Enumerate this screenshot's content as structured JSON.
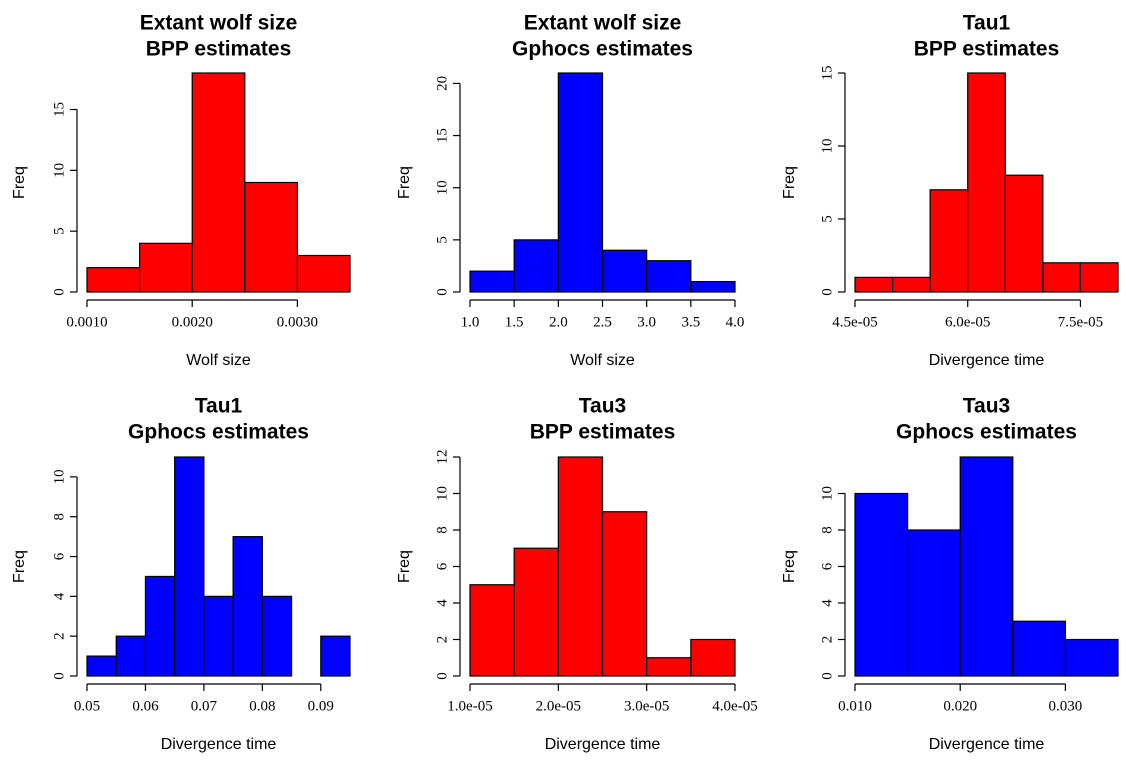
{
  "chart_data": [
    {
      "type": "bar",
      "title": [
        "Extant wolf size",
        "BPP estimates"
      ],
      "xlabel": "Wolf size",
      "ylabel": "Freq",
      "fill": "#ff0000",
      "bins": [
        [
          0.001,
          0.0015
        ],
        [
          0.0015,
          0.002
        ],
        [
          0.002,
          0.0025
        ],
        [
          0.0025,
          0.003
        ],
        [
          0.003,
          0.0035
        ]
      ],
      "values": [
        2,
        4,
        18,
        9,
        3
      ],
      "xlim": [
        0.001,
        0.0035
      ],
      "ylim": [
        0,
        18
      ],
      "xticks": [
        0.001,
        0.002,
        0.003
      ],
      "xtick_labels": [
        "0.0010",
        "0.0020",
        "0.0030"
      ],
      "yticks": [
        0,
        5,
        10,
        15
      ],
      "ytick_labels": [
        "0",
        "5",
        "10",
        "15"
      ]
    },
    {
      "type": "bar",
      "title": [
        "Extant wolf size",
        "Gphocs estimates"
      ],
      "xlabel": "Wolf size",
      "ylabel": "Freq",
      "fill": "#0000ff",
      "bins": [
        [
          1.0,
          1.5
        ],
        [
          1.5,
          2.0
        ],
        [
          2.0,
          2.5
        ],
        [
          2.5,
          3.0
        ],
        [
          3.0,
          3.5
        ],
        [
          3.5,
          4.0
        ]
      ],
      "values": [
        2,
        5,
        21,
        4,
        3,
        1
      ],
      "xlim": [
        1.0,
        4.0
      ],
      "ylim": [
        0,
        21
      ],
      "xticks": [
        1.0,
        1.5,
        2.0,
        2.5,
        3.0,
        3.5,
        4.0
      ],
      "xtick_labels": [
        "1.0",
        "1.5",
        "2.0",
        "2.5",
        "3.0",
        "3.5",
        "4.0"
      ],
      "yticks": [
        0,
        5,
        10,
        15,
        20
      ],
      "ytick_labels": [
        "0",
        "5",
        "10",
        "15",
        "20"
      ]
    },
    {
      "type": "bar",
      "title": [
        "Tau1",
        "BPP estimates"
      ],
      "xlabel": "Divergence time",
      "ylabel": "Freq",
      "fill": "#ff0000",
      "bins": [
        [
          4.5e-05,
          5e-05
        ],
        [
          5e-05,
          5.5e-05
        ],
        [
          5.5e-05,
          6e-05
        ],
        [
          6e-05,
          6.5e-05
        ],
        [
          6.5e-05,
          7e-05
        ],
        [
          7e-05,
          7.5e-05
        ],
        [
          7.5e-05,
          8e-05
        ]
      ],
      "values": [
        1,
        1,
        7,
        15,
        8,
        2,
        2
      ],
      "xlim": [
        4.5e-05,
        8e-05
      ],
      "ylim": [
        0,
        15
      ],
      "xticks": [
        4.5e-05,
        6e-05,
        7.5e-05
      ],
      "xtick_labels": [
        "4.5e-05",
        "6.0e-05",
        "7.5e-05"
      ],
      "yticks": [
        0,
        5,
        10,
        15
      ],
      "ytick_labels": [
        "0",
        "5",
        "10",
        "15"
      ]
    },
    {
      "type": "bar",
      "title": [
        "Tau1",
        "Gphocs estimates"
      ],
      "xlabel": "Divergence time",
      "ylabel": "Freq",
      "fill": "#0000ff",
      "bins": [
        [
          0.05,
          0.055
        ],
        [
          0.055,
          0.06
        ],
        [
          0.06,
          0.065
        ],
        [
          0.065,
          0.07
        ],
        [
          0.07,
          0.075
        ],
        [
          0.075,
          0.08
        ],
        [
          0.08,
          0.085
        ],
        [
          0.085,
          0.09
        ],
        [
          0.09,
          0.095
        ]
      ],
      "values": [
        1,
        2,
        5,
        11,
        4,
        7,
        4,
        0,
        2
      ],
      "xlim": [
        0.05,
        0.095
      ],
      "ylim": [
        0,
        11
      ],
      "xticks": [
        0.05,
        0.06,
        0.07,
        0.08,
        0.09
      ],
      "xtick_labels": [
        "0.05",
        "0.06",
        "0.07",
        "0.08",
        "0.09"
      ],
      "yticks": [
        0,
        2,
        4,
        6,
        8,
        10
      ],
      "ytick_labels": [
        "0",
        "2",
        "4",
        "6",
        "8",
        "10"
      ]
    },
    {
      "type": "bar",
      "title": [
        "Tau3",
        "BPP estimates"
      ],
      "xlabel": "Divergence time",
      "ylabel": "Freq",
      "fill": "#ff0000",
      "bins": [
        [
          1e-05,
          1.5e-05
        ],
        [
          1.5e-05,
          2e-05
        ],
        [
          2e-05,
          2.5e-05
        ],
        [
          2.5e-05,
          3e-05
        ],
        [
          3e-05,
          3.5e-05
        ],
        [
          3.5e-05,
          4e-05
        ]
      ],
      "values": [
        5,
        7,
        12,
        9,
        1,
        2
      ],
      "xlim": [
        1e-05,
        4e-05
      ],
      "ylim": [
        0,
        12
      ],
      "xticks": [
        1e-05,
        2e-05,
        3e-05,
        4e-05
      ],
      "xtick_labels": [
        "1.0e-05",
        "2.0e-05",
        "3.0e-05",
        "4.0e-05"
      ],
      "yticks": [
        0,
        2,
        4,
        6,
        8,
        10,
        12
      ],
      "ytick_labels": [
        "0",
        "2",
        "4",
        "6",
        "8",
        "10",
        "12"
      ]
    },
    {
      "type": "bar",
      "title": [
        "Tau3",
        "Gphocs estimates"
      ],
      "xlabel": "Divergence time",
      "ylabel": "Freq",
      "fill": "#0000ff",
      "bins": [
        [
          0.01,
          0.015
        ],
        [
          0.015,
          0.02
        ],
        [
          0.02,
          0.025
        ],
        [
          0.025,
          0.03
        ],
        [
          0.03,
          0.035
        ]
      ],
      "values": [
        10,
        8,
        12,
        3,
        2
      ],
      "xlim": [
        0.01,
        0.035
      ],
      "ylim": [
        0,
        12
      ],
      "xticks": [
        0.01,
        0.02,
        0.03
      ],
      "xtick_labels": [
        "0.010",
        "0.020",
        "0.030"
      ],
      "yticks": [
        0,
        2,
        4,
        6,
        8,
        10
      ],
      "ytick_labels": [
        "0",
        "2",
        "4",
        "6",
        "8",
        "10"
      ]
    }
  ]
}
